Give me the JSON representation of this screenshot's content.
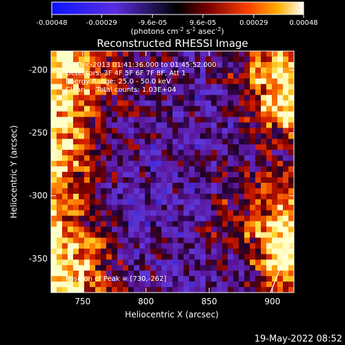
{
  "chart_data": {
    "type": "heatmap",
    "title": "Reconstructed RHESSI Image",
    "xlabel": "Heliocentric X (arcsec)",
    "ylabel": "Heliocentric Y (arcsec)",
    "xlim": [
      725,
      917
    ],
    "ylim": [
      -377,
      -185
    ],
    "x_ticks": [
      750,
      800,
      850,
      900
    ],
    "y_ticks": [
      -200,
      -250,
      -300,
      -350
    ],
    "colorbar": {
      "range": [
        -0.00048,
        0.00048
      ],
      "tick_values": [
        -0.00048,
        -0.00029,
        -9.6e-05,
        9.6e-05,
        0.00029,
        0.00048
      ],
      "tick_labels": [
        "-0.00048",
        "-0.00029",
        "-9.6e-05",
        "9.6e-05",
        "0.00029",
        "0.00048"
      ],
      "units_label": "(photons cm",
      "units_exp1": "-2",
      "units_mid": " s",
      "units_exp2": "-1",
      "units_end": " asec",
      "units_exp3": "-2",
      "units_close": ")"
    },
    "annotations": [
      "23-Dec-2013 01:41:36.000 to 01:45:52.000",
      "Detectors: 3F 4F 5F 6F 7F 8F, Att 1",
      "Energy Range: 25.0 - 50.0 keV",
      "Clean     Total counts: 1.03E+04"
    ],
    "peak_label": "Position of Peak = [730,-262]",
    "peak": [
      730,
      -262
    ]
  },
  "footer": {
    "date_stamp": "19-May-2022 08:52"
  }
}
